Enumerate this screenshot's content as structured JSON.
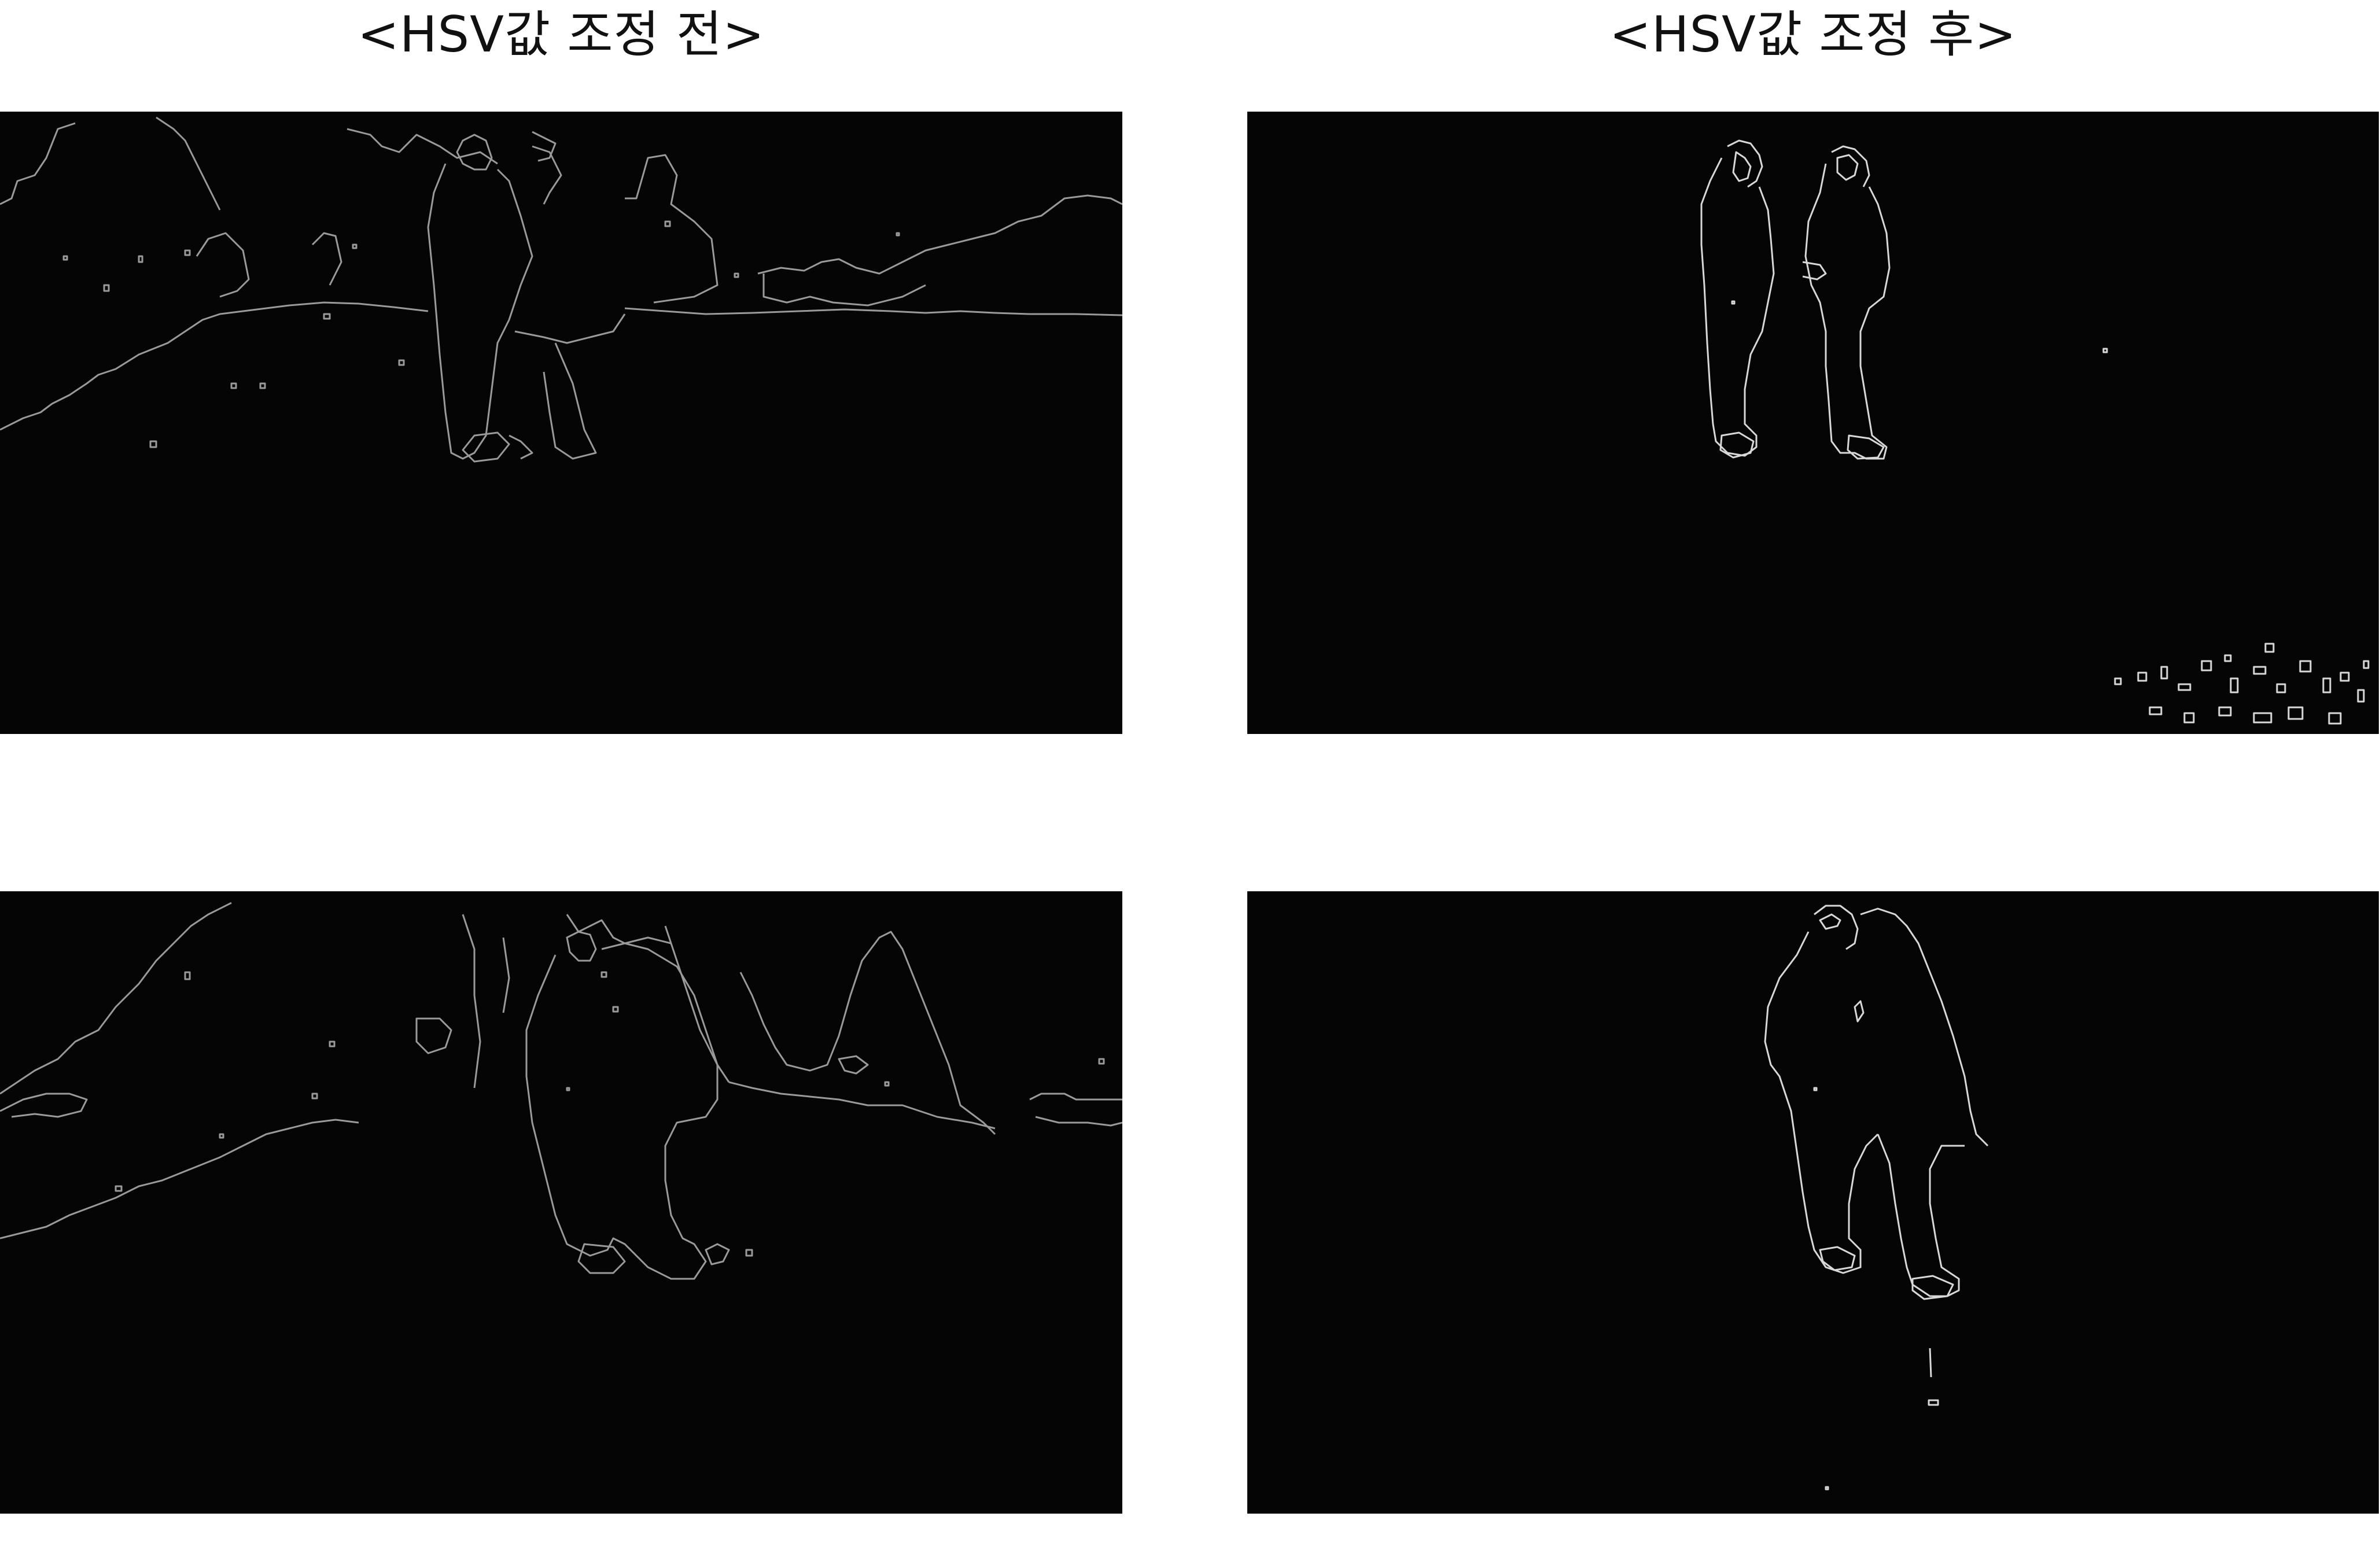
{
  "titles": {
    "before": "<HSV값 조정 전>",
    "after": "<HSV값 조정 후>"
  },
  "panels": [
    {
      "position": "top-left",
      "content": "edge detection before HSV adjustment - scene 1"
    },
    {
      "position": "top-right",
      "content": "edge detection after HSV adjustment - scene 1"
    },
    {
      "position": "bottom-left",
      "content": "edge detection before HSV adjustment - scene 2"
    },
    {
      "position": "bottom-right",
      "content": "edge detection after HSV adjustment - scene 2"
    }
  ],
  "colors": {
    "panel_background": "#050505",
    "edge_before": "#9a9a9a",
    "edge_after": "#d8d8d8"
  }
}
